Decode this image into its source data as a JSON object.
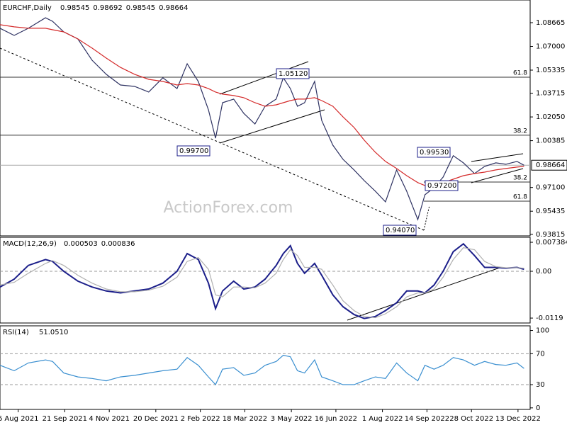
{
  "chart_data": [
    {
      "type": "line",
      "title": "EURCHF,Daily",
      "header_values": [
        0.98545,
        0.98692,
        0.98545,
        0.98664
      ],
      "x": [
        "2021-07-19",
        "2021-08-02",
        "2021-08-16",
        "2021-09-02",
        "2021-09-09",
        "2021-09-20",
        "2021-10-04",
        "2021-10-18",
        "2021-11-01",
        "2021-11-15",
        "2021-11-29",
        "2021-12-13",
        "2021-12-27",
        "2022-01-10",
        "2022-01-20",
        "2022-01-31",
        "2022-02-10",
        "2022-02-17",
        "2022-02-24",
        "2022-03-07",
        "2022-03-17",
        "2022-03-28",
        "2022-04-07",
        "2022-04-18",
        "2022-04-25",
        "2022-05-02",
        "2022-05-09",
        "2022-05-16",
        "2022-05-26",
        "2022-06-02",
        "2022-06-13",
        "2022-06-23",
        "2022-07-04",
        "2022-07-14",
        "2022-07-25",
        "2022-08-04",
        "2022-08-15",
        "2022-08-25",
        "2022-09-05",
        "2022-09-12",
        "2022-09-21",
        "2022-09-30",
        "2022-10-10",
        "2022-10-20",
        "2022-10-31",
        "2022-11-10",
        "2022-11-21",
        "2022-12-01",
        "2022-12-12",
        "2022-12-19"
      ],
      "series": [
        {
          "color": "#2e3262",
          "values": [
            1.0827,
            1.0777,
            1.0827,
            1.0901,
            1.0876,
            1.0802,
            1.0752,
            1.0603,
            1.0504,
            1.0429,
            1.0419,
            1.038,
            1.048,
            1.0404,
            1.0578,
            1.0454,
            1.0255,
            1.0056,
            1.0305,
            1.033,
            1.023,
            1.0156,
            1.028,
            1.033,
            1.048,
            1.0404,
            1.028,
            1.0305,
            1.0454,
            1.018,
            1.0007,
            0.9908,
            0.9833,
            0.9758,
            0.9684,
            0.9609,
            0.9833,
            0.9684,
            0.9485,
            0.9659,
            0.9709,
            0.9783,
            0.9933,
            0.9883,
            0.9808,
            0.9858,
            0.9883,
            0.9873,
            0.9893,
            0.9866
          ]
        },
        {
          "color": "#d42a2a",
          "values": [
            1.0852,
            1.0837,
            1.0827,
            1.0827,
            1.0817,
            1.0802,
            1.0752,
            1.0688,
            1.0618,
            1.0553,
            1.0504,
            1.0469,
            1.0454,
            1.0429,
            1.0439,
            1.0429,
            1.0404,
            1.038,
            1.0365,
            1.0355,
            1.034,
            1.0305,
            1.028,
            1.029,
            1.0305,
            1.032,
            1.033,
            1.033,
            1.034,
            1.032,
            1.028,
            1.0206,
            1.0131,
            1.0042,
            0.9957,
            0.9893,
            0.9843,
            0.9793,
            0.9744,
            0.9724,
            0.9724,
            0.9744,
            0.9768,
            0.9793,
            0.9808,
            0.9818,
            0.9833,
            0.9843,
            0.9853,
            0.9858
          ]
        }
      ],
      "xlim": [
        "2021-07-19",
        "2022-12-25"
      ],
      "ylim": [
        0.93705,
        1.10255
      ],
      "yticks": [
        1.08665,
        {
          "value": 1.07,
          "label": "1.07000"
        },
        1.05335,
        1.03715,
        {
          "value": 1.0205,
          "label": "1.02050"
        },
        1.00385,
        {
          "value": 0.971,
          "label": "0.97100"
        },
        0.95435,
        0.93815
      ],
      "last_price": 0.98664,
      "fib_levels": [
        {
          "label": "61.8",
          "value": 1.0484
        },
        {
          "label": "38.2",
          "value": 1.0077
        },
        {
          "label": "38.2",
          "value": 0.9748
        },
        {
          "label": "61.8",
          "value": 0.9614
        }
      ],
      "annotations": [
        "1.05120",
        "0.99700",
        "0.99530",
        "0.97200",
        "0.94070"
      ],
      "watermark": "ActionForex.com"
    },
    {
      "type": "line",
      "title": "MACD(12,26,9)",
      "header_values": [
        0.000503,
        0.000836
      ],
      "x": [
        "2021-07-19",
        "2021-08-02",
        "2021-08-16",
        "2021-09-02",
        "2021-09-09",
        "2021-09-20",
        "2021-10-04",
        "2021-10-18",
        "2021-11-01",
        "2021-11-15",
        "2021-11-29",
        "2021-12-13",
        "2021-12-27",
        "2022-01-10",
        "2022-01-20",
        "2022-01-31",
        "2022-02-10",
        "2022-02-17",
        "2022-02-24",
        "2022-03-07",
        "2022-03-17",
        "2022-03-28",
        "2022-04-07",
        "2022-04-18",
        "2022-04-25",
        "2022-05-02",
        "2022-05-09",
        "2022-05-16",
        "2022-05-26",
        "2022-06-02",
        "2022-06-13",
        "2022-06-23",
        "2022-07-04",
        "2022-07-14",
        "2022-07-25",
        "2022-08-04",
        "2022-08-15",
        "2022-08-25",
        "2022-09-05",
        "2022-09-12",
        "2022-09-21",
        "2022-09-30",
        "2022-10-10",
        "2022-10-20",
        "2022-10-31",
        "2022-11-10",
        "2022-11-21",
        "2022-12-01",
        "2022-12-12",
        "2022-12-19"
      ],
      "series": [
        {
          "color": "#1c1f8a",
          "values": [
            -0.004,
            -0.002,
            0.0015,
            0.003,
            0.0025,
            0,
            -0.0025,
            -0.004,
            -0.005,
            -0.0055,
            -0.005,
            -0.0045,
            -0.003,
            0,
            0.0045,
            0.003,
            -0.003,
            -0.0095,
            -0.005,
            -0.0025,
            -0.0045,
            -0.004,
            -0.002,
            0.0015,
            0.0045,
            0.0065,
            0.002,
            -0.0005,
            0.002,
            -0.001,
            -0.006,
            -0.009,
            -0.011,
            -0.012,
            -0.0115,
            -0.01,
            -0.008,
            -0.005,
            -0.005,
            -0.0055,
            -0.0035,
            0,
            0.005,
            0.007,
            0.004,
            0.001,
            0.001,
            0.0008,
            0.001,
            0.0005
          ]
        },
        {
          "color": "#b0b0b0",
          "values": [
            -0.0035,
            -0.0028,
            -0.0005,
            0.002,
            0.0027,
            0.0015,
            -0.001,
            -0.003,
            -0.0045,
            -0.0052,
            -0.0052,
            -0.0048,
            -0.0038,
            -0.0015,
            0.0025,
            0.0035,
            0.0005,
            -0.006,
            -0.0065,
            -0.004,
            -0.004,
            -0.0042,
            -0.003,
            -0.0005,
            0.003,
            0.0055,
            0.004,
            0.001,
            0.001,
            0.0005,
            -0.0035,
            -0.0075,
            -0.01,
            -0.0115,
            -0.0118,
            -0.0108,
            -0.009,
            -0.0065,
            -0.0055,
            -0.0055,
            -0.0045,
            -0.0015,
            0.003,
            0.006,
            0.0055,
            0.0025,
            0.0012,
            0.0009,
            0.0009,
            0.0008
          ]
        }
      ],
      "xlim": [
        "2021-07-19",
        "2022-12-25"
      ],
      "ylim": [
        -0.01315,
        0.00865
      ],
      "yticks": [
        0.007384,
        {
          "value": 0,
          "label": "0.00"
        },
        -0.0119
      ],
      "level_lines": [
        0
      ]
    },
    {
      "type": "line",
      "title": "RSI(14)",
      "header_values": [
        {
          "value": 51.051,
          "label": "51.0510"
        }
      ],
      "x": [
        "2021-07-19",
        "2021-08-02",
        "2021-08-16",
        "2021-09-02",
        "2021-09-09",
        "2021-09-20",
        "2021-10-04",
        "2021-10-18",
        "2021-11-01",
        "2021-11-15",
        "2021-11-29",
        "2021-12-13",
        "2021-12-27",
        "2022-01-10",
        "2022-01-20",
        "2022-01-31",
        "2022-02-10",
        "2022-02-17",
        "2022-02-24",
        "2022-03-07",
        "2022-03-17",
        "2022-03-28",
        "2022-04-07",
        "2022-04-18",
        "2022-04-25",
        "2022-05-02",
        "2022-05-09",
        "2022-05-16",
        "2022-05-26",
        "2022-06-02",
        "2022-06-13",
        "2022-06-23",
        "2022-07-04",
        "2022-07-14",
        "2022-07-25",
        "2022-08-04",
        "2022-08-15",
        "2022-08-25",
        "2022-09-05",
        "2022-09-12",
        "2022-09-21",
        "2022-09-30",
        "2022-10-10",
        "2022-10-20",
        "2022-10-31",
        "2022-11-10",
        "2022-11-21",
        "2022-12-01",
        "2022-12-12",
        "2022-12-19"
      ],
      "series": [
        {
          "color": "#3a8fd0",
          "values": [
            55,
            48,
            58,
            62,
            60,
            45,
            40,
            38,
            35,
            40,
            42,
            45,
            48,
            50,
            65,
            55,
            40,
            30,
            50,
            52,
            42,
            45,
            55,
            60,
            68,
            66,
            48,
            45,
            62,
            40,
            35,
            30,
            30,
            35,
            40,
            38,
            58,
            45,
            35,
            55,
            50,
            55,
            65,
            62,
            55,
            60,
            56,
            55,
            58,
            51
          ]
        }
      ],
      "xlim": [
        "2021-07-19",
        "2022-12-25"
      ],
      "ylim": [
        -2,
        106
      ],
      "yticks": [
        100,
        70,
        30,
        0
      ],
      "level_lines": [
        70,
        30
      ],
      "xticks": [
        {
          "value": "2021-08-06",
          "label": "6 Aug 2021"
        },
        {
          "value": "2021-09-21",
          "label": "21 Sep 2021"
        },
        {
          "value": "2021-11-04",
          "label": "4 Nov 2021"
        },
        {
          "value": "2021-12-20",
          "label": "20 Dec 2021"
        },
        {
          "value": "2022-02-02",
          "label": "2 Feb 2022"
        },
        {
          "value": "2022-03-18",
          "label": "18 Mar 2022"
        },
        {
          "value": "2022-05-03",
          "label": "3 May 2022"
        },
        {
          "value": "2022-06-16",
          "label": "16 Jun 2022"
        },
        {
          "value": "2022-08-01",
          "label": "1 Aug 2022"
        },
        {
          "value": "2022-09-14",
          "label": "14 Sep 2022"
        },
        {
          "value": "2022-10-28",
          "label": "28 Oct 2022"
        },
        {
          "value": "2022-12-13",
          "label": "13 Dec 2022"
        }
      ]
    }
  ]
}
